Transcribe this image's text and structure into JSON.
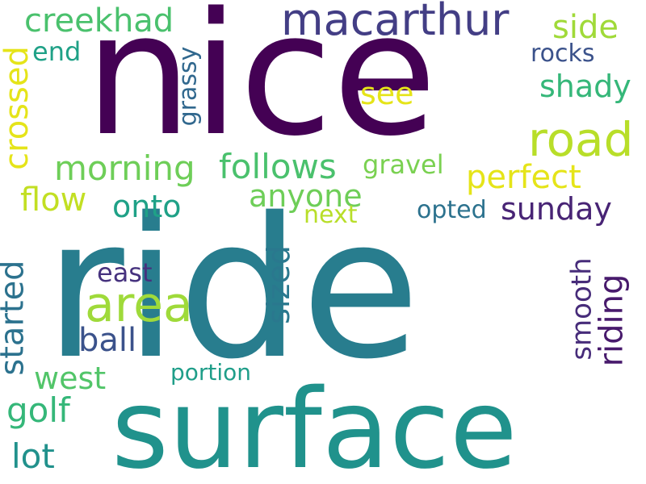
{
  "cloud": {
    "nice": {
      "text": "nice",
      "color": "#440154"
    },
    "ride": {
      "text": "ride",
      "color": "#287d8e"
    },
    "surface": {
      "text": "surface",
      "color": "#20928c"
    },
    "macarthur": {
      "text": "macarthur",
      "color": "#433e85"
    },
    "road": {
      "text": "road",
      "color": "#b8de29"
    },
    "area": {
      "text": "area",
      "color": "#9fda3a"
    },
    "creekhad": {
      "text": "creekhad",
      "color": "#4ac16d"
    },
    "side": {
      "text": "side",
      "color": "#a0da39"
    },
    "end": {
      "text": "end",
      "color": "#1fa187"
    },
    "rocks": {
      "text": "rocks",
      "color": "#3b528b"
    },
    "see": {
      "text": "see",
      "color": "#e5e419"
    },
    "shady": {
      "text": "shady",
      "color": "#35b779"
    },
    "crossed": {
      "text": "crossed",
      "color": "#e5e419"
    },
    "grassy": {
      "text": "grassy",
      "color": "#31688e"
    },
    "morning": {
      "text": "morning",
      "color": "#6ece58"
    },
    "follows": {
      "text": "follows",
      "color": "#4ac16d"
    },
    "gravel": {
      "text": "gravel",
      "color": "#7ad151"
    },
    "perfect": {
      "text": "perfect",
      "color": "#e5e419"
    },
    "flow": {
      "text": "flow",
      "color": "#c2df23"
    },
    "onto": {
      "text": "onto",
      "color": "#1fa187"
    },
    "anyone": {
      "text": "anyone",
      "color": "#6ece58"
    },
    "next": {
      "text": "next",
      "color": "#b8de29"
    },
    "opted": {
      "text": "opted",
      "color": "#2c728e"
    },
    "sunday": {
      "text": "sunday",
      "color": "#482475"
    },
    "started": {
      "text": "started",
      "color": "#2c728e"
    },
    "east": {
      "text": "east",
      "color": "#46327e"
    },
    "sized": {
      "text": "sized",
      "color": "#2a788e"
    },
    "smooth": {
      "text": "smooth",
      "color": "#472c7a"
    },
    "riding": {
      "text": "riding",
      "color": "#481a6c"
    },
    "ball": {
      "text": "ball",
      "color": "#3b528b"
    },
    "west": {
      "text": "west",
      "color": "#52c569"
    },
    "portion": {
      "text": "portion",
      "color": "#1f9e89"
    },
    "golf": {
      "text": "golf",
      "color": "#35b779"
    },
    "lot": {
      "text": "lot",
      "color": "#21918c"
    }
  }
}
